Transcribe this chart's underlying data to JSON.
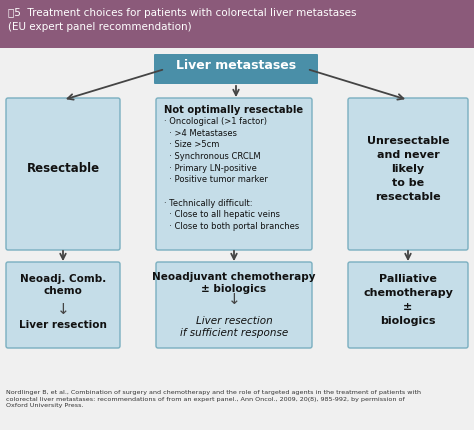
{
  "title_bg_color": "#8B5A7A",
  "title_text_line1": "围5  Treatment choices for patients with colorectal liver metastases",
  "title_text_line2": "(EU expert panel recommendation)",
  "title_fontsize": 7.5,
  "title_text_color": "#ffffff",
  "header_box_color": "#4A8FA8",
  "header_box_text": "Liver metastases",
  "header_box_text_color": "#ffffff",
  "light_box_color": "#C5DDE8",
  "box_border_color": "#7AAFC0",
  "arrow_color": "#444444",
  "left_box_text": "Resectable",
  "right_box_text": "Unresectable\nand never\nlikely\nto be\nresectable",
  "bottom_left_line1": "Neoadj. Comb.",
  "bottom_left_line2": "chemo",
  "bottom_left_line3": "Liver resection",
  "bottom_mid_line1": "Neoadjuvant chemotherapy",
  "bottom_mid_line2": "± biologics",
  "bottom_mid_line3": "Liver resection",
  "bottom_mid_line4": "if sufficient response",
  "bottom_right_text": "Palliative\nchemotherapy\n±\nbiologics",
  "mid_title": "Not optimally resectable",
  "mid_bullet1": "· Oncological (>1 factor)",
  "mid_bullet2": "  · >4 Metastases",
  "mid_bullet3": "  · Size >5cm",
  "mid_bullet4": "  · Synchronous CRCLM",
  "mid_bullet5": "  · Primary LN-positive",
  "mid_bullet6": "  · Positive tumor marker",
  "mid_bullet7": "· Technically difficult:",
  "mid_bullet8": "  · Close to all hepatic veins",
  "mid_bullet9": "  · Close to both portal branches",
  "footnote_line1": "Nordlinger B, et al., Combination of surgery and chemotherapy and the role of targeted agents in the treatment of patients with",
  "footnote_line2": "colorectal liver metastases: recommendations of from an expert panel., Ann Oncol., 2009, 20(8), 985-992, by permission of",
  "footnote_line3": "Oxford University Press.",
  "background_color": "#f0f0f0"
}
